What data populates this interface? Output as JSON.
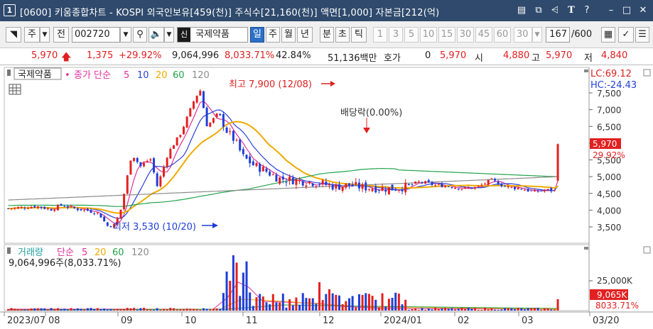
{
  "window": {
    "index": "1",
    "title": "[0600] 키움종합차트 - KOSPI 외국인보유[459(천)] 주식수[21,160(천)] 액면[1,000] 자본금[212(억)"
  },
  "toolbar": {
    "market": "주",
    "prev_label": "전",
    "stock_code": "002720",
    "stock_badge": "신",
    "stock_name": "국제약품",
    "periods": [
      "일",
      "주",
      "월",
      "년",
      "분",
      "초",
      "틱"
    ],
    "selected_period": "일",
    "intervals": [
      "1",
      "3",
      "5",
      "10",
      "15",
      "30",
      "45",
      "60"
    ],
    "interval_value": "30",
    "count_value": "167",
    "count_total": "/600"
  },
  "quote": {
    "price": "5,970",
    "change": "1,375",
    "change_pct": "+29.92%",
    "volume": "9,064,996",
    "volume_ratio": "8,033.71%",
    "turnover": "42.84%",
    "amount": "51,136백만",
    "hoga_label": "호가",
    "hoga_value": "0",
    "hoga_price": "5,970",
    "open_label": "시",
    "open_value": "4,880",
    "high_label": "고",
    "high_value": "5,970",
    "low_label": "저",
    "low_value": "4,840"
  },
  "price_panel": {
    "stock_tag": "국제약품",
    "ma_title": "종가 단순",
    "ma_periods": [
      "5",
      "10",
      "20",
      "60",
      "120"
    ],
    "ma_colors": [
      "#e0309a",
      "#2b40d6",
      "#f0aa00",
      "#21a34a",
      "#8c8c8c"
    ],
    "lc_label": "LC:69.12",
    "hc_label": "HC:-24.43",
    "high_annotation": "최고 7,900 (12/08)",
    "low_annotation": "최저 3,530 (10/20)",
    "dividend_annotation": "배당락(0.00%)",
    "last_price_tag": "5,970",
    "last_change_tag": "29.92%",
    "y_ticks": [
      "7,500",
      "7,000",
      "6,500",
      "6,000",
      "5,500",
      "5,000",
      "4,500",
      "4,000",
      "3,500"
    ]
  },
  "volume_panel": {
    "title": "거래량",
    "ma_title": "단순",
    "ma_periods": [
      "5",
      "20",
      "60",
      "120"
    ],
    "ma_colors": [
      "#e0309a",
      "#f0aa00",
      "#21a34a",
      "#8c8c8c"
    ],
    "subtitle": "9,064,996주(8,033.71%)",
    "y_tick": "25,000K",
    "last_volume_tag": "9,065K",
    "last_ratio_tag": "8033.71%"
  },
  "x_axis": [
    "2023/07",
    "08",
    "09",
    "10",
    "11",
    "12",
    "2024/01",
    "02",
    "03",
    "03/20"
  ],
  "colors": {
    "up": "#e32020",
    "down": "#1f3fd8",
    "title_bg": "#2f4a6c",
    "selected": "#2d6fc6"
  }
}
